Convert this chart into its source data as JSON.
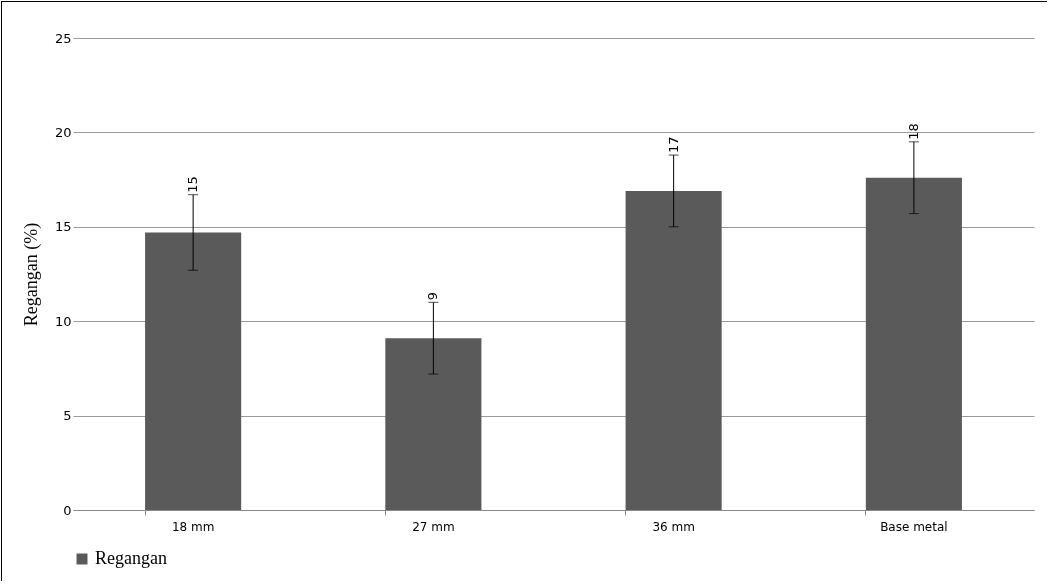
{
  "chart_data": {
    "type": "bar",
    "ylabel": "Regangan (%)",
    "categories": [
      "18 mm",
      "27 mm",
      "36 mm",
      "Base metal"
    ],
    "series": [
      {
        "name": "Regangan",
        "color": "#5a5a5a",
        "values": [
          14.7,
          9.1,
          16.9,
          17.6
        ],
        "errors": [
          2,
          1.9,
          1.9,
          1.9
        ],
        "value_labels": [
          "15",
          "9",
          "17",
          "18"
        ]
      }
    ],
    "ylim": [
      0,
      25
    ],
    "yticks": [
      0,
      5,
      10,
      15,
      20,
      25
    ],
    "grid": "y",
    "legend": "bottom"
  }
}
